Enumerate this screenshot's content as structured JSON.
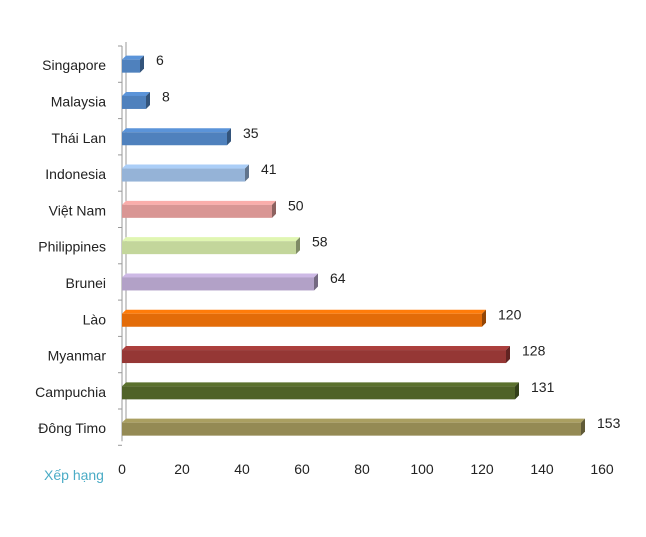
{
  "chart_data": {
    "type": "bar",
    "orientation": "horizontal",
    "style": "3d",
    "categories": [
      "Singapore",
      "Malaysia",
      "Thái Lan",
      "Indonesia",
      "Việt Nam",
      "Philippines",
      "Brunei",
      "Lào",
      "Myanmar",
      "Campuchia",
      "Đông Timo"
    ],
    "values": [
      6,
      8,
      35,
      41,
      50,
      58,
      64,
      120,
      128,
      131,
      153
    ],
    "data_labels": [
      "6",
      "8",
      "35",
      "41",
      "50",
      "58",
      "64",
      "120",
      "128",
      "131",
      "153"
    ],
    "colors": [
      "#4f81bd",
      "#4f81bd",
      "#4f81bd",
      "#95b3d7",
      "#d99694",
      "#c3d69b",
      "#b2a1c7",
      "#e36c09",
      "#953735",
      "#4f6228",
      "#948a54"
    ],
    "xlabel": "Xếp hạng",
    "xlabel_color": "#4bacc6",
    "xlim": [
      0,
      160
    ],
    "xticks": [
      "0",
      "20",
      "40",
      "60",
      "80",
      "100",
      "120",
      "140",
      "160"
    ],
    "grid": false,
    "legend": "none"
  }
}
